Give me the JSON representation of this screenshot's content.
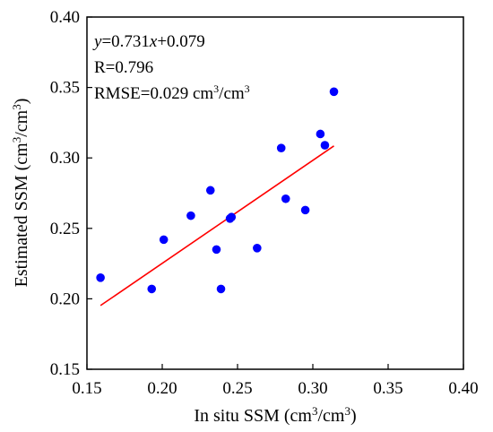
{
  "chart_data": {
    "type": "scatter",
    "xlabel": "In situ SSM (cm³/cm³)",
    "ylabel": "Estimated SSM (cm³/cm³)",
    "xlim": [
      0.15,
      0.4
    ],
    "ylim": [
      0.15,
      0.4
    ],
    "xticks": [
      "0.15",
      "0.20",
      "0.25",
      "0.30",
      "0.35",
      "0.40"
    ],
    "yticks": [
      "0.15",
      "0.20",
      "0.25",
      "0.30",
      "0.35",
      "0.40"
    ],
    "grid": false,
    "annotations": {
      "equation": "y=0.731x+0.079",
      "r": "R=0.796",
      "rmse": "RMSE=0.029 cm³/cm³"
    },
    "series": [
      {
        "points": [
          [
            0.159,
            0.215
          ],
          [
            0.193,
            0.207
          ],
          [
            0.201,
            0.242
          ],
          [
            0.219,
            0.259
          ],
          [
            0.232,
            0.277
          ],
          [
            0.236,
            0.235
          ],
          [
            0.239,
            0.207
          ],
          [
            0.245,
            0.257
          ],
          [
            0.246,
            0.258
          ],
          [
            0.263,
            0.236
          ],
          [
            0.279,
            0.307
          ],
          [
            0.282,
            0.271
          ],
          [
            0.295,
            0.263
          ],
          [
            0.305,
            0.317
          ],
          [
            0.308,
            0.309
          ],
          [
            0.314,
            0.347
          ]
        ],
        "color": "#0000ff"
      }
    ],
    "fit_line": {
      "slope": 0.731,
      "intercept": 0.079,
      "x_range": [
        0.159,
        0.314
      ],
      "color": "#ff0000"
    }
  }
}
